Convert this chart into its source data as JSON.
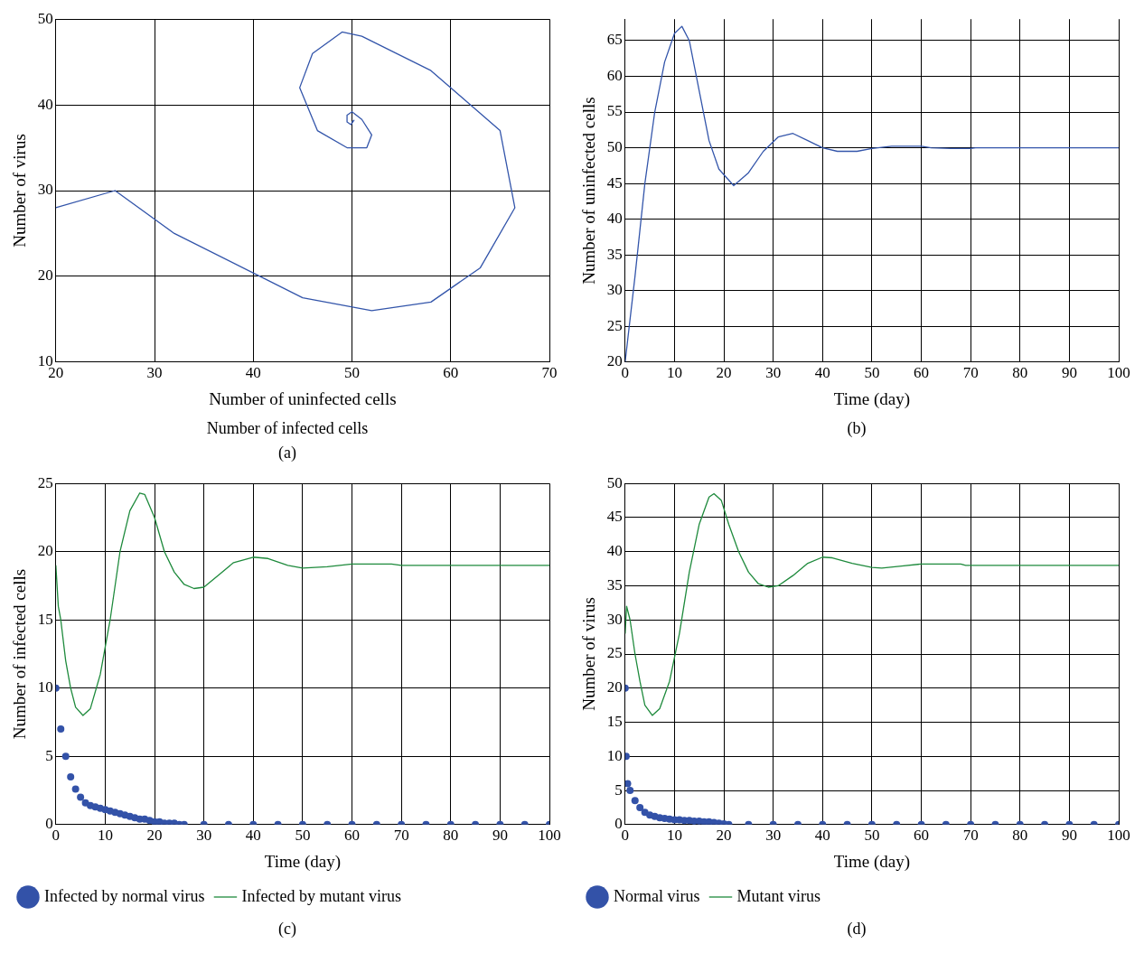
{
  "chart_data": [
    {
      "type": "line",
      "xlabel": "Number of uninfected cells",
      "ylabel": "Number of virus",
      "annotations": [
        "Number of infected cells",
        "(a)"
      ],
      "xlim": [
        20,
        70
      ],
      "xticks": [
        20,
        30,
        40,
        50,
        60,
        70
      ],
      "ylim": [
        10,
        50
      ],
      "yticks": [
        10,
        20,
        30,
        40,
        50
      ],
      "grid": true,
      "legend": false,
      "series": [
        {
          "color": "#3355aa",
          "x": [
            20,
            26,
            32,
            45,
            52,
            58,
            63,
            66.5,
            65,
            58,
            51,
            49,
            46,
            44.7,
            46.5,
            49.5,
            51.5,
            52,
            51,
            50,
            49.5,
            49.5,
            49.9,
            50.2,
            50
          ],
          "values": [
            28,
            30,
            25,
            17.5,
            16,
            17,
            21,
            28,
            37,
            44,
            48,
            48.5,
            46,
            42,
            37,
            35,
            35,
            36.5,
            38.3,
            39.2,
            38.8,
            38,
            37.7,
            38.2,
            38
          ]
        }
      ]
    },
    {
      "type": "line",
      "xlabel": "Time (day)",
      "ylabel": "Number of uninfected cells",
      "annotations": [
        "(b)"
      ],
      "xlim": [
        0,
        100
      ],
      "xticks": [
        0,
        10,
        20,
        30,
        40,
        50,
        60,
        70,
        80,
        90,
        100
      ],
      "ylim": [
        20,
        68
      ],
      "yticks": [
        20,
        25,
        30,
        35,
        40,
        45,
        50,
        55,
        60,
        65
      ],
      "grid": true,
      "legend": false,
      "series": [
        {
          "color": "#3355aa",
          "x": [
            0,
            2,
            4,
            6,
            8,
            10,
            11.5,
            13,
            15,
            17,
            19,
            22,
            25,
            28,
            31,
            34,
            37,
            40,
            43,
            47,
            50,
            54,
            60,
            62,
            66,
            70,
            71,
            100
          ],
          "values": [
            20,
            32,
            45,
            55,
            62,
            66,
            67,
            65,
            58,
            51,
            47,
            44.7,
            46.5,
            49.5,
            51.5,
            52,
            51,
            50,
            49.5,
            49.5,
            49.9,
            50.2,
            50.2,
            50,
            49.9,
            49.9,
            50,
            50
          ]
        }
      ]
    },
    {
      "type": "line",
      "xlabel": "Time (day)",
      "ylabel": "Number of infected cells",
      "annotations": [
        "(c)"
      ],
      "xlim": [
        0,
        100
      ],
      "xticks": [
        0,
        10,
        20,
        30,
        40,
        50,
        60,
        70,
        80,
        90,
        100
      ],
      "ylim": [
        0,
        25
      ],
      "yticks": [
        0,
        5,
        10,
        15,
        20,
        25
      ],
      "grid": true,
      "legend": "bottom",
      "series": [
        {
          "type": "scatter",
          "marker": "circle",
          "name": "Infected by normal virus",
          "color": "#3352a8",
          "x": [
            0,
            1,
            2,
            3,
            4,
            5,
            6,
            7,
            8,
            9,
            10,
            11,
            12,
            13,
            14,
            15,
            16,
            17,
            18,
            19,
            20,
            21,
            22,
            23,
            24,
            25,
            26,
            30,
            35,
            40,
            45,
            50,
            55,
            60,
            65,
            70,
            75,
            80,
            85,
            90,
            95,
            100
          ],
          "values": [
            10,
            7,
            5,
            3.5,
            2.6,
            2,
            1.6,
            1.4,
            1.3,
            1.2,
            1.1,
            1,
            0.9,
            0.8,
            0.7,
            0.6,
            0.5,
            0.4,
            0.4,
            0.3,
            0.2,
            0.2,
            0.1,
            0.1,
            0.1,
            0,
            0,
            0,
            0,
            0,
            0,
            0,
            0,
            0,
            0,
            0,
            0,
            0,
            0,
            0,
            0,
            0
          ]
        },
        {
          "name": "Infected by mutant virus",
          "color": "#1e8a3c",
          "x": [
            0,
            0.5,
            1,
            2,
            3,
            4,
            5.5,
            7,
            9,
            11,
            13,
            15,
            17,
            18,
            20,
            22,
            24,
            26,
            28,
            30,
            33,
            36,
            40,
            43,
            47,
            50,
            55,
            60,
            68,
            70,
            100
          ],
          "values": [
            19,
            16,
            15,
            12,
            10,
            8.6,
            8,
            8.5,
            11,
            15,
            20,
            23,
            24.3,
            24.2,
            22.5,
            20,
            18.5,
            17.6,
            17.3,
            17.4,
            18.3,
            19.2,
            19.6,
            19.5,
            19,
            18.8,
            18.9,
            19.1,
            19.1,
            19,
            19
          ]
        }
      ]
    },
    {
      "type": "line",
      "xlabel": "Time (day)",
      "ylabel": "Number of virus",
      "annotations": [
        "(d)"
      ],
      "xlim": [
        0,
        100
      ],
      "xticks": [
        0,
        10,
        20,
        30,
        40,
        50,
        60,
        70,
        80,
        90,
        100
      ],
      "ylim": [
        0,
        50
      ],
      "yticks": [
        0,
        5,
        10,
        15,
        20,
        25,
        30,
        35,
        40,
        45,
        50
      ],
      "grid": true,
      "legend": "bottom",
      "series": [
        {
          "type": "scatter",
          "marker": "circle",
          "name": "Normal virus",
          "color": "#3352a8",
          "x": [
            0,
            0.2,
            0.5,
            1,
            2,
            3,
            4,
            5,
            6,
            7,
            8,
            9,
            10,
            11,
            12,
            13,
            14,
            15,
            16,
            17,
            18,
            19,
            20,
            21,
            25,
            30,
            35,
            40,
            45,
            50,
            55,
            60,
            65,
            70,
            75,
            80,
            85,
            90,
            95,
            100
          ],
          "values": [
            20,
            10,
            6,
            5,
            3.5,
            2.5,
            1.8,
            1.4,
            1.2,
            1,
            0.9,
            0.8,
            0.7,
            0.7,
            0.6,
            0.6,
            0.5,
            0.5,
            0.4,
            0.4,
            0.3,
            0.2,
            0.1,
            0,
            0,
            0,
            0,
            0,
            0,
            0,
            0,
            0,
            0,
            0,
            0,
            0,
            0,
            0,
            0,
            0
          ]
        },
        {
          "name": "Mutant virus",
          "color": "#1e8a3c",
          "x": [
            0,
            0.3,
            1,
            2,
            3,
            4,
            5.5,
            7,
            9,
            11,
            13,
            15,
            17,
            18,
            19.5,
            21,
            23,
            25,
            27,
            29,
            31,
            34,
            37,
            40,
            42,
            46,
            50,
            52,
            56,
            60,
            68,
            69,
            100
          ],
          "values": [
            28,
            32,
            30,
            25,
            21,
            17.5,
            16,
            17,
            21,
            28,
            37,
            44,
            48,
            48.5,
            47.5,
            44,
            40,
            37,
            35.3,
            34.8,
            35,
            36.5,
            38.3,
            39.2,
            39.1,
            38.3,
            37.7,
            37.6,
            37.9,
            38.2,
            38.2,
            38,
            38
          ]
        }
      ]
    }
  ]
}
